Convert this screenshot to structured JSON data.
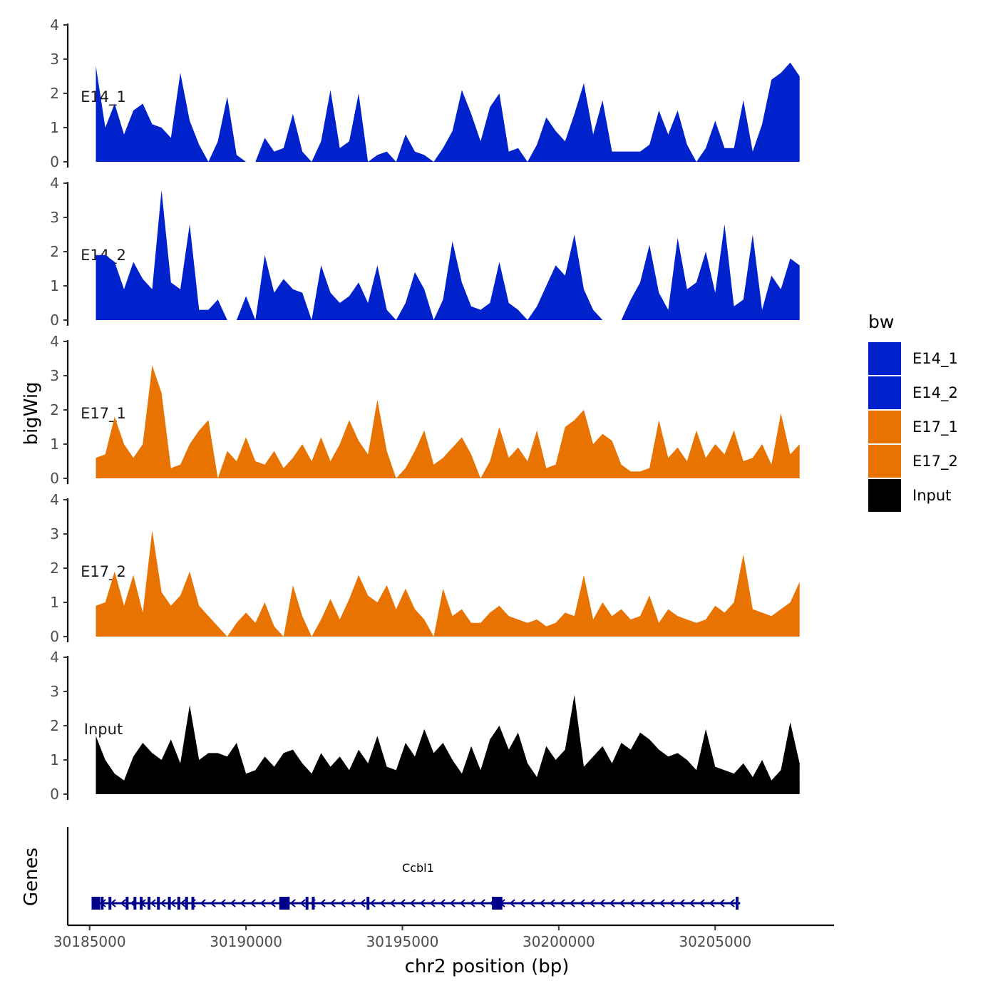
{
  "chart_data": {
    "type": "area",
    "ylabel": "bigWig",
    "xlabel": "chr2 position (bp)",
    "ylim": [
      0,
      4
    ],
    "yticks": [
      0,
      1,
      2,
      3,
      4
    ],
    "xlim": [
      30184300,
      30208800
    ],
    "xticks": [
      30185000,
      30190000,
      30195000,
      30200000,
      30205000
    ],
    "xtick_labels": [
      "30185000",
      "30190000",
      "30195000",
      "30200000",
      "30205000"
    ],
    "legend": {
      "title": "bw",
      "position": "right",
      "entries": [
        {
          "label": "E14_1",
          "color": "#0022CC"
        },
        {
          "label": "E14_2",
          "color": "#0022CC"
        },
        {
          "label": "E17_1",
          "color": "#E87300"
        },
        {
          "label": "E17_2",
          "color": "#E87300"
        },
        {
          "label": "Input",
          "color": "#000000"
        }
      ]
    },
    "tracks": [
      {
        "name": "E14_1",
        "color": "#0022CC",
        "x": [
          30185200,
          30185500,
          30185800,
          30186100,
          30186400,
          30186700,
          30187000,
          30187300,
          30187600,
          30187900,
          30188200,
          30188500,
          30188800,
          30189100,
          30189400,
          30189700,
          30190000,
          30190300,
          30190600,
          30190900,
          30191200,
          30191500,
          30191800,
          30192100,
          30192400,
          30192700,
          30193000,
          30193300,
          30193600,
          30193900,
          30194200,
          30194500,
          30194800,
          30195100,
          30195400,
          30195700,
          30196000,
          30196300,
          30196600,
          30196900,
          30197200,
          30197500,
          30197800,
          30198100,
          30198400,
          30198700,
          30199000,
          30199300,
          30199600,
          30199900,
          30200200,
          30200500,
          30200800,
          30201100,
          30201400,
          30201700,
          30202000,
          30202300,
          30202600,
          30202900,
          30203200,
          30203500,
          30203800,
          30204100,
          30204400,
          30204700,
          30205000,
          30205300,
          30205600,
          30205900,
          30206200,
          30206500,
          30206800,
          30207100,
          30207400,
          30207700
        ],
        "y": [
          2.8,
          1.0,
          1.7,
          0.8,
          1.5,
          1.7,
          1.1,
          1.0,
          0.7,
          2.6,
          1.2,
          0.5,
          0.0,
          0.6,
          1.9,
          0.2,
          0.0,
          0.0,
          0.7,
          0.3,
          0.4,
          1.4,
          0.3,
          0.0,
          0.6,
          2.1,
          0.4,
          0.6,
          2.0,
          0.0,
          0.2,
          0.3,
          0.0,
          0.8,
          0.3,
          0.2,
          0.0,
          0.4,
          0.9,
          2.1,
          1.4,
          0.6,
          1.6,
          2.0,
          0.3,
          0.4,
          0.0,
          0.5,
          1.3,
          0.9,
          0.6,
          1.4,
          2.3,
          0.8,
          1.8,
          0.3,
          0.3,
          0.3,
          0.3,
          0.5,
          1.5,
          0.8,
          1.5,
          0.5,
          0.0,
          0.4,
          1.2,
          0.4,
          0.4,
          1.8,
          0.3,
          1.1,
          2.4,
          2.6,
          2.9,
          2.5
        ]
      },
      {
        "name": "E14_2",
        "color": "#0022CC",
        "x": [
          30185200,
          30185500,
          30185800,
          30186100,
          30186400,
          30186700,
          30187000,
          30187300,
          30187600,
          30187900,
          30188200,
          30188500,
          30188800,
          30189100,
          30189400,
          30189700,
          30190000,
          30190300,
          30190600,
          30190900,
          30191200,
          30191500,
          30191800,
          30192100,
          30192400,
          30192700,
          30193000,
          30193300,
          30193600,
          30193900,
          30194200,
          30194500,
          30194800,
          30195100,
          30195400,
          30195700,
          30196000,
          30196300,
          30196600,
          30196900,
          30197200,
          30197500,
          30197800,
          30198100,
          30198400,
          30198700,
          30199000,
          30199300,
          30199600,
          30199900,
          30200200,
          30200500,
          30200800,
          30201100,
          30201400,
          30201700,
          30202000,
          30202300,
          30202600,
          30202900,
          30203200,
          30203500,
          30203800,
          30204100,
          30204400,
          30204700,
          30205000,
          30205300,
          30205600,
          30205900,
          30206200,
          30206500,
          30206800,
          30207100,
          30207400,
          30207700
        ],
        "y": [
          1.9,
          1.9,
          1.7,
          0.9,
          1.7,
          1.2,
          0.9,
          3.8,
          1.1,
          0.9,
          2.8,
          0.3,
          0.3,
          0.6,
          0.0,
          0.0,
          0.7,
          0.0,
          1.9,
          0.8,
          1.2,
          0.9,
          0.8,
          0.0,
          1.6,
          0.8,
          0.5,
          0.7,
          1.1,
          0.5,
          1.6,
          0.3,
          0.0,
          0.5,
          1.4,
          0.9,
          0.0,
          0.6,
          2.3,
          1.1,
          0.4,
          0.3,
          0.5,
          1.7,
          0.5,
          0.3,
          0.0,
          0.4,
          1.0,
          1.6,
          1.3,
          2.5,
          0.9,
          0.3,
          0.0,
          0.0,
          0.0,
          0.6,
          1.1,
          2.2,
          0.8,
          0.3,
          2.4,
          0.9,
          1.1,
          2.0,
          0.8,
          2.8,
          0.4,
          0.6,
          2.5,
          0.3,
          1.3,
          0.9,
          1.8,
          1.6
        ]
      },
      {
        "name": "E17_1",
        "color": "#E87300",
        "x": [
          30185200,
          30185500,
          30185800,
          30186100,
          30186400,
          30186700,
          30187000,
          30187300,
          30187600,
          30187900,
          30188200,
          30188500,
          30188800,
          30189100,
          30189400,
          30189700,
          30190000,
          30190300,
          30190600,
          30190900,
          30191200,
          30191500,
          30191800,
          30192100,
          30192400,
          30192700,
          30193000,
          30193300,
          30193600,
          30193900,
          30194200,
          30194500,
          30194800,
          30195100,
          30195400,
          30195700,
          30196000,
          30196300,
          30196600,
          30196900,
          30197200,
          30197500,
          30197800,
          30198100,
          30198400,
          30198700,
          30199000,
          30199300,
          30199600,
          30199900,
          30200200,
          30200500,
          30200800,
          30201100,
          30201400,
          30201700,
          30202000,
          30202300,
          30202600,
          30202900,
          30203200,
          30203500,
          30203800,
          30204100,
          30204400,
          30204700,
          30205000,
          30205300,
          30205600,
          30205900,
          30206200,
          30206500,
          30206800,
          30207100,
          30207400,
          30207700
        ],
        "y": [
          0.6,
          0.7,
          1.8,
          1.0,
          0.6,
          1.0,
          3.3,
          2.5,
          0.3,
          0.4,
          1.0,
          1.4,
          1.7,
          0.0,
          0.8,
          0.5,
          1.2,
          0.5,
          0.4,
          0.8,
          0.3,
          0.6,
          1.0,
          0.5,
          1.2,
          0.5,
          1.0,
          1.7,
          1.1,
          0.7,
          2.3,
          0.8,
          0.0,
          0.3,
          0.8,
          1.4,
          0.4,
          0.6,
          0.9,
          1.2,
          0.7,
          0.0,
          0.5,
          1.5,
          0.6,
          0.9,
          0.5,
          1.4,
          0.3,
          0.4,
          1.5,
          1.7,
          2.0,
          1.0,
          1.3,
          1.1,
          0.4,
          0.2,
          0.2,
          0.3,
          1.7,
          0.6,
          0.9,
          0.5,
          1.4,
          0.6,
          1.0,
          0.7,
          1.4,
          0.5,
          0.6,
          1.0,
          0.4,
          1.9,
          0.7,
          1.0
        ]
      },
      {
        "name": "E17_2",
        "color": "#E87300",
        "x": [
          30185200,
          30185500,
          30185800,
          30186100,
          30186400,
          30186700,
          30187000,
          30187300,
          30187600,
          30187900,
          30188200,
          30188500,
          30188800,
          30189100,
          30189400,
          30189700,
          30190000,
          30190300,
          30190600,
          30190900,
          30191200,
          30191500,
          30191800,
          30192100,
          30192400,
          30192700,
          30193000,
          30193300,
          30193600,
          30193900,
          30194200,
          30194500,
          30194800,
          30195100,
          30195400,
          30195700,
          30196000,
          30196300,
          30196600,
          30196900,
          30197200,
          30197500,
          30197800,
          30198100,
          30198400,
          30198700,
          30199000,
          30199300,
          30199600,
          30199900,
          30200200,
          30200500,
          30200800,
          30201100,
          30201400,
          30201700,
          30202000,
          30202300,
          30202600,
          30202900,
          30203200,
          30203500,
          30203800,
          30204100,
          30204400,
          30204700,
          30205000,
          30205300,
          30205600,
          30205900,
          30206200,
          30206500,
          30206800,
          30207100,
          30207400,
          30207700
        ],
        "y": [
          0.9,
          1.0,
          1.9,
          0.9,
          1.8,
          0.7,
          3.1,
          1.3,
          0.9,
          1.2,
          1.9,
          0.9,
          0.6,
          0.3,
          0.0,
          0.4,
          0.7,
          0.4,
          1.0,
          0.3,
          0.0,
          1.5,
          0.6,
          0.0,
          0.5,
          1.1,
          0.5,
          1.1,
          1.8,
          1.2,
          1.0,
          1.5,
          0.8,
          1.4,
          0.8,
          0.5,
          0.0,
          1.4,
          0.6,
          0.8,
          0.4,
          0.4,
          0.7,
          0.9,
          0.6,
          0.5,
          0.4,
          0.5,
          0.3,
          0.4,
          0.7,
          0.6,
          1.8,
          0.5,
          1.0,
          0.6,
          0.8,
          0.5,
          0.6,
          1.2,
          0.4,
          0.8,
          0.6,
          0.5,
          0.4,
          0.5,
          0.9,
          0.7,
          1.0,
          2.4,
          0.8,
          0.7,
          0.6,
          0.8,
          1.0,
          1.6
        ]
      },
      {
        "name": "Input",
        "color": "#000000",
        "x": [
          30185200,
          30185500,
          30185800,
          30186100,
          30186400,
          30186700,
          30187000,
          30187300,
          30187600,
          30187900,
          30188200,
          30188500,
          30188800,
          30189100,
          30189400,
          30189700,
          30190000,
          30190300,
          30190600,
          30190900,
          30191200,
          30191500,
          30191800,
          30192100,
          30192400,
          30192700,
          30193000,
          30193300,
          30193600,
          30193900,
          30194200,
          30194500,
          30194800,
          30195100,
          30195400,
          30195700,
          30196000,
          30196300,
          30196600,
          30196900,
          30197200,
          30197500,
          30197800,
          30198100,
          30198400,
          30198700,
          30199000,
          30199300,
          30199600,
          30199900,
          30200200,
          30200500,
          30200800,
          30201100,
          30201400,
          30201700,
          30202000,
          30202300,
          30202600,
          30202900,
          30203200,
          30203500,
          30203800,
          30204100,
          30204400,
          30204700,
          30205000,
          30205300,
          30205600,
          30205900,
          30206200,
          30206500,
          30206800,
          30207100,
          30207400,
          30207700
        ],
        "y": [
          1.7,
          1.0,
          0.6,
          0.4,
          1.1,
          1.5,
          1.2,
          1.0,
          1.6,
          0.9,
          2.6,
          1.0,
          1.2,
          1.2,
          1.1,
          1.5,
          0.6,
          0.7,
          1.1,
          0.8,
          1.2,
          1.3,
          0.9,
          0.6,
          1.2,
          0.8,
          1.1,
          0.7,
          1.3,
          0.9,
          1.7,
          0.8,
          0.7,
          1.5,
          1.1,
          1.9,
          1.2,
          1.5,
          1.0,
          0.6,
          1.4,
          0.7,
          1.6,
          2.0,
          1.3,
          1.8,
          0.9,
          0.5,
          1.4,
          1.0,
          1.3,
          2.9,
          0.8,
          1.1,
          1.4,
          0.9,
          1.5,
          1.3,
          1.8,
          1.6,
          1.3,
          1.1,
          1.2,
          1.0,
          0.7,
          1.9,
          0.8,
          0.7,
          0.6,
          0.9,
          0.5,
          1.0,
          0.4,
          0.7,
          2.1,
          0.9
        ]
      }
    ],
    "gene_track": {
      "label": "Genes",
      "gene_name": "Ccbl1",
      "color": "#00008B",
      "strand": "-",
      "start": 30185100,
      "end": 30205800,
      "exons": [
        30185200,
        30185400,
        30185650,
        30186200,
        30186450,
        30186650,
        30186900,
        30187200,
        30187550,
        30187850,
        30188100,
        30188300,
        30191200,
        30191350,
        30191950,
        30192150,
        30193900,
        30198000,
        30198150,
        30205700
      ]
    }
  }
}
